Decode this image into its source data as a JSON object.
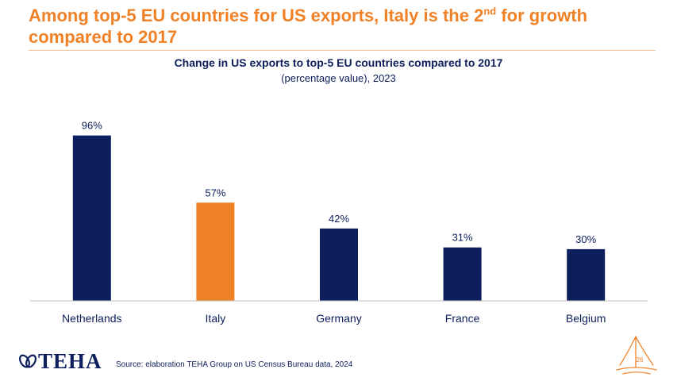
{
  "header": {
    "title_part1": "Among top-5 EU countries for US exports, Italy is the 2",
    "title_superscript": "nd",
    "title_part2": " for growth compared to 2017"
  },
  "chart_data": {
    "type": "bar",
    "title": "Change in US exports to top-5 EU countries compared to 2017",
    "subtitle": "(percentage value), 2023",
    "categories": [
      "Netherlands",
      "Italy",
      "Germany",
      "France",
      "Belgium"
    ],
    "values": [
      96,
      57,
      42,
      31,
      30
    ],
    "labels": [
      "96%",
      "57%",
      "42%",
      "31%",
      "30%"
    ],
    "colors": [
      "#0c1e5b",
      "#f08127",
      "#0c1e5b",
      "#0c1e5b",
      "#0c1e5b"
    ],
    "highlight": "Italy",
    "ylim": [
      0,
      100
    ],
    "grid": false,
    "xlabel": "",
    "ylabel": ""
  },
  "footer": {
    "logo_text": "TEHA",
    "source": "Source: elaboration TEHA Group on US Census Bureau data, 2024",
    "page_number": "26"
  },
  "colors": {
    "accent": "#f08127",
    "navy": "#0c1e5b",
    "axis": "#bdbdbd",
    "rule": "#f3c49b"
  }
}
